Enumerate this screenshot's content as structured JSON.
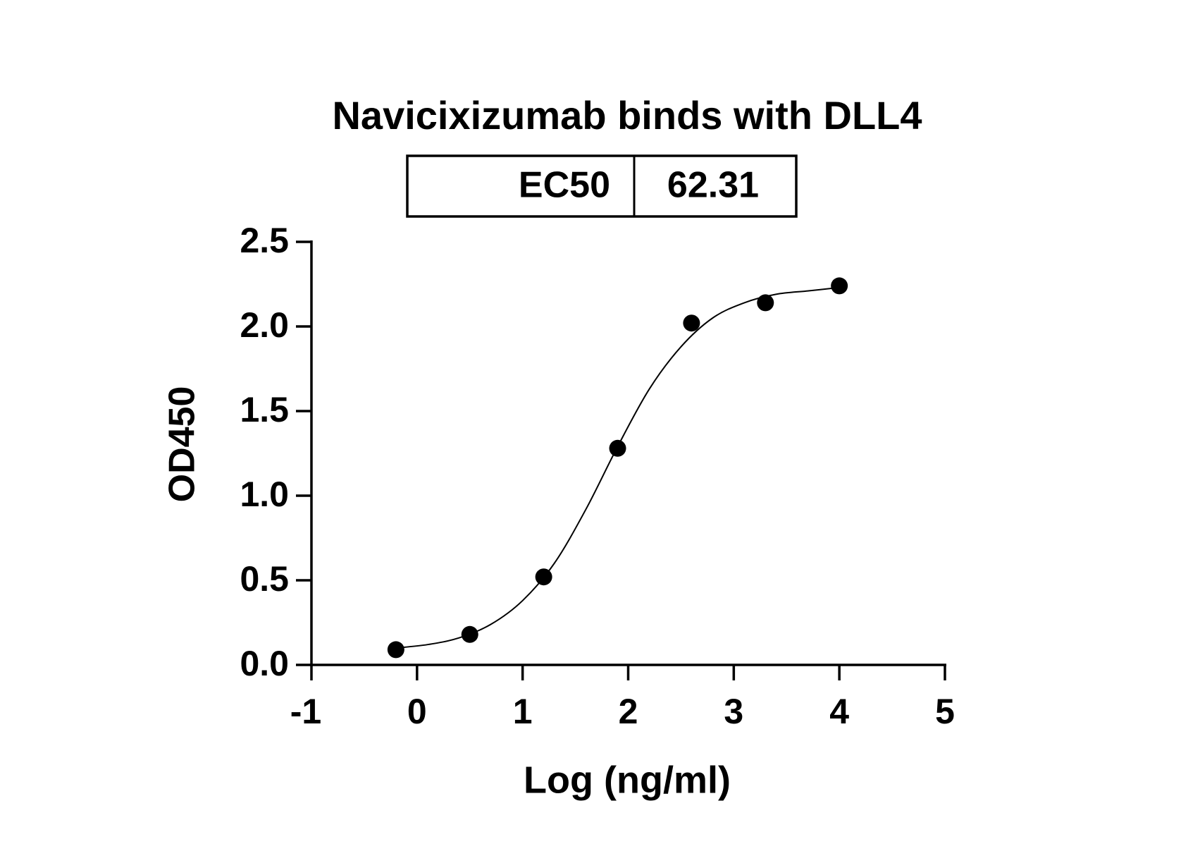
{
  "chart_data": {
    "type": "scatter",
    "title": "Navicixizumab binds with DLL4",
    "annotation": {
      "label": "EC50",
      "value": 62.31
    },
    "xlabel": "Log (ng/ml)",
    "ylabel": "OD450",
    "x": [
      -0.2,
      0.5,
      1.2,
      1.9,
      2.6,
      3.3,
      4.0
    ],
    "values": [
      0.09,
      0.18,
      0.52,
      1.28,
      2.02,
      2.14,
      2.24
    ],
    "color": "#000000",
    "curve": {
      "x": [
        -0.2,
        0.1,
        0.4,
        0.7,
        1.0,
        1.3,
        1.6,
        1.9,
        2.2,
        2.5,
        2.8,
        3.1,
        3.4,
        3.7,
        4.0
      ],
      "y": [
        0.1,
        0.12,
        0.16,
        0.24,
        0.38,
        0.6,
        0.92,
        1.29,
        1.63,
        1.88,
        2.05,
        2.14,
        2.19,
        2.21,
        2.23
      ]
    },
    "xlim": [
      -1,
      5
    ],
    "xticks": [
      -1,
      0,
      1,
      2,
      3,
      4,
      5
    ],
    "ylim": [
      0,
      2.5
    ],
    "yticks": [
      {
        "value": 0,
        "label": "0.0"
      },
      0.5,
      {
        "value": 1,
        "label": "1.0"
      },
      1.5,
      {
        "value": 2,
        "label": "2.0"
      },
      2.5
    ]
  }
}
